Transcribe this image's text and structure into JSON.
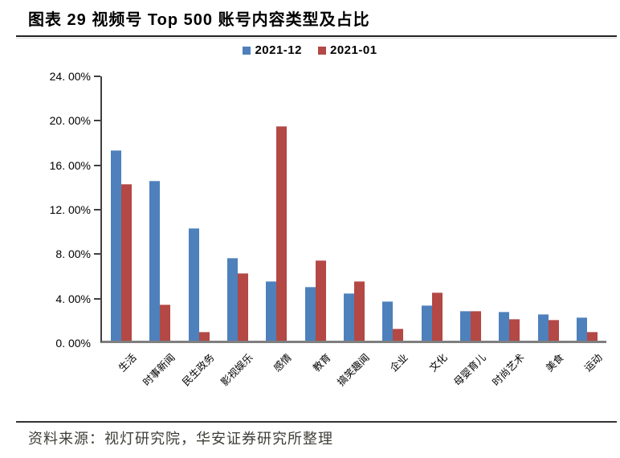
{
  "title": "图表 29 视频号 Top 500 账号内容类型及占比",
  "source": "资料来源：视灯研究院，华安证券研究所整理",
  "legend": [
    {
      "label": "2021-12",
      "color": "#4E80BC"
    },
    {
      "label": "2021-01",
      "color": "#B34845"
    }
  ],
  "chart_data": {
    "type": "bar",
    "title": "视频号 Top 500 账号内容类型及占比",
    "categories": [
      "生活",
      "时事新闻",
      "民生政务",
      "影视娱乐",
      "感情",
      "教育",
      "搞笑趣闻",
      "企业",
      "文化",
      "母婴育儿",
      "时尚艺术",
      "美食",
      "运动"
    ],
    "series": [
      {
        "name": "2021-12",
        "color": "#4E80BC",
        "values": [
          17.3,
          14.5,
          10.2,
          7.5,
          5.4,
          4.9,
          4.3,
          3.6,
          3.2,
          2.7,
          2.6,
          2.4,
          2.1
        ]
      },
      {
        "name": "2021-01",
        "color": "#B34845",
        "values": [
          14.2,
          3.3,
          0.8,
          6.1,
          19.5,
          7.3,
          5.4,
          1.1,
          4.4,
          2.7,
          2.0,
          1.9,
          0.8
        ]
      }
    ],
    "xlabel": "",
    "ylabel": "",
    "ylim": [
      0,
      24
    ],
    "yticks": [
      {
        "value": 0,
        "label": "0. 00%"
      },
      {
        "value": 4,
        "label": "4. 00%"
      },
      {
        "value": 8,
        "label": "8. 00%"
      },
      {
        "value": 12,
        "label": "12. 00%"
      },
      {
        "value": 16,
        "label": "16. 00%"
      },
      {
        "value": 20,
        "label": "20. 00%"
      },
      {
        "value": 24,
        "label": "24. 00%"
      }
    ],
    "grid": false,
    "legend_position": "top-center",
    "bar_unit": "percent"
  }
}
